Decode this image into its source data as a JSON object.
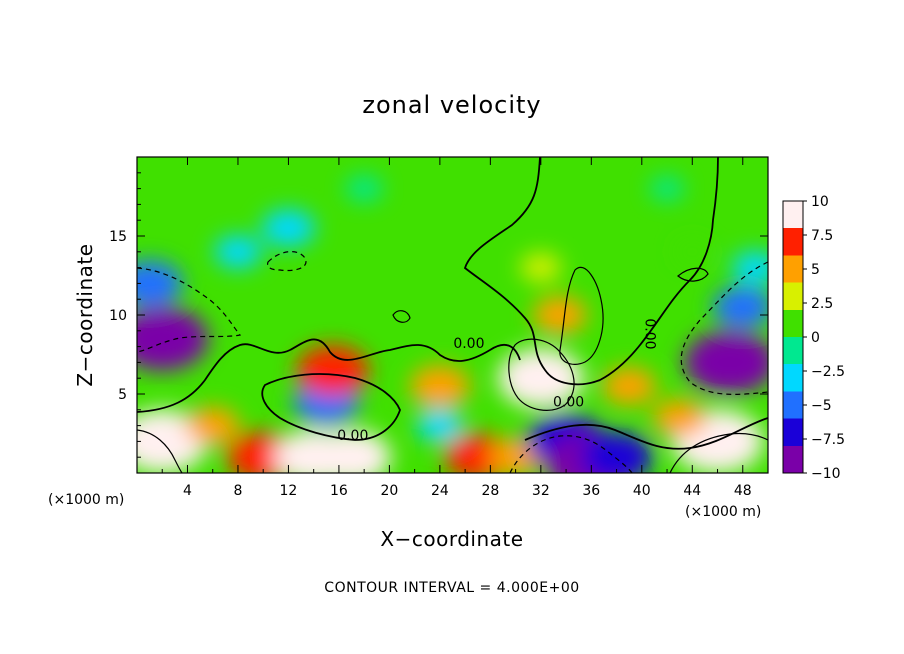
{
  "chart_data": {
    "type": "heatmap",
    "title": "zonal velocity",
    "xlabel": "X−coordinate",
    "ylabel": "Z−coordinate",
    "x_unit": "(×1000 m)",
    "z_unit": "(×1000 m)",
    "xlim": [
      0,
      50
    ],
    "zlim": [
      0,
      20
    ],
    "x_ticks": [
      4,
      8,
      12,
      16,
      20,
      24,
      28,
      32,
      36,
      40,
      44,
      48
    ],
    "x_tick_labels": [
      "4",
      "8",
      "12",
      "16",
      "20",
      "24",
      "28",
      "32",
      "36",
      "40",
      "44",
      "48"
    ],
    "z_ticks": [
      5,
      10,
      15
    ],
    "z_tick_labels": [
      "5",
      "10",
      "15"
    ],
    "colorbar": {
      "range": [
        -10,
        10
      ],
      "ticks": [
        10,
        7.5,
        5,
        2.5,
        0,
        -2.5,
        -5,
        -7.5,
        -10
      ],
      "tick_labels": [
        "10",
        "7.5",
        "5",
        "2.5",
        "0",
        "−2.5",
        "−5",
        "−7.5",
        "−10"
      ],
      "colors": [
        "#7a00a8",
        "#1a00d8",
        "#2070ff",
        "#00d8ff",
        "#00e890",
        "#40e000",
        "#d8f000",
        "#ffa000",
        "#ff2000",
        "#fff0f0"
      ]
    },
    "contour_interval": "CONTOUR INTERVAL = 4.000E+00",
    "contour_labels": [
      {
        "text": "0.00",
        "x": 17.1,
        "z": 2.1
      },
      {
        "text": "0.00",
        "x": 26.3,
        "z": 7.9
      },
      {
        "text": "0.00",
        "x": 34.2,
        "z": 4.2
      },
      {
        "text": "0.00",
        "x": 40.3,
        "z": 8.8
      }
    ],
    "features": [
      {
        "x": 2,
        "z": 2,
        "value": 10
      },
      {
        "x": 2,
        "z": 8.5,
        "value": -10
      },
      {
        "x": 1,
        "z": 12,
        "value": -6
      },
      {
        "x": 8,
        "z": 14,
        "value": -3
      },
      {
        "x": 12,
        "z": 15.5,
        "value": -4
      },
      {
        "x": 15,
        "z": 4.5,
        "value": -6
      },
      {
        "x": 15.5,
        "z": 6.5,
        "value": 7
      },
      {
        "x": 10,
        "z": 1,
        "value": 7
      },
      {
        "x": 14,
        "z": 1,
        "value": 8
      },
      {
        "x": 17,
        "z": 1,
        "value": 8
      },
      {
        "x": 6,
        "z": 3,
        "value": 4
      },
      {
        "x": 18,
        "z": 18,
        "value": -1.5
      },
      {
        "x": 24,
        "z": 5.5,
        "value": 5
      },
      {
        "x": 24,
        "z": 3,
        "value": -3
      },
      {
        "x": 27,
        "z": 1,
        "value": 6
      },
      {
        "x": 30,
        "z": 1,
        "value": 4
      },
      {
        "x": 32,
        "z": 6,
        "value": 9
      },
      {
        "x": 33.5,
        "z": 10,
        "value": 4
      },
      {
        "x": 32,
        "z": 13,
        "value": 2
      },
      {
        "x": 34,
        "z": 2,
        "value": -8
      },
      {
        "x": 36,
        "z": 0.5,
        "value": -10
      },
      {
        "x": 38,
        "z": 1,
        "value": -7
      },
      {
        "x": 39,
        "z": 5.5,
        "value": 4
      },
      {
        "x": 44,
        "z": 14,
        "value": 0.5
      },
      {
        "x": 47,
        "z": 7,
        "value": -10
      },
      {
        "x": 48,
        "z": 10.5,
        "value": -5
      },
      {
        "x": 49,
        "z": 13,
        "value": -3
      },
      {
        "x": 46,
        "z": 2,
        "value": 10
      },
      {
        "x": 43,
        "z": 3.5,
        "value": 4
      },
      {
        "x": 42,
        "z": 18,
        "value": -1
      }
    ]
  }
}
